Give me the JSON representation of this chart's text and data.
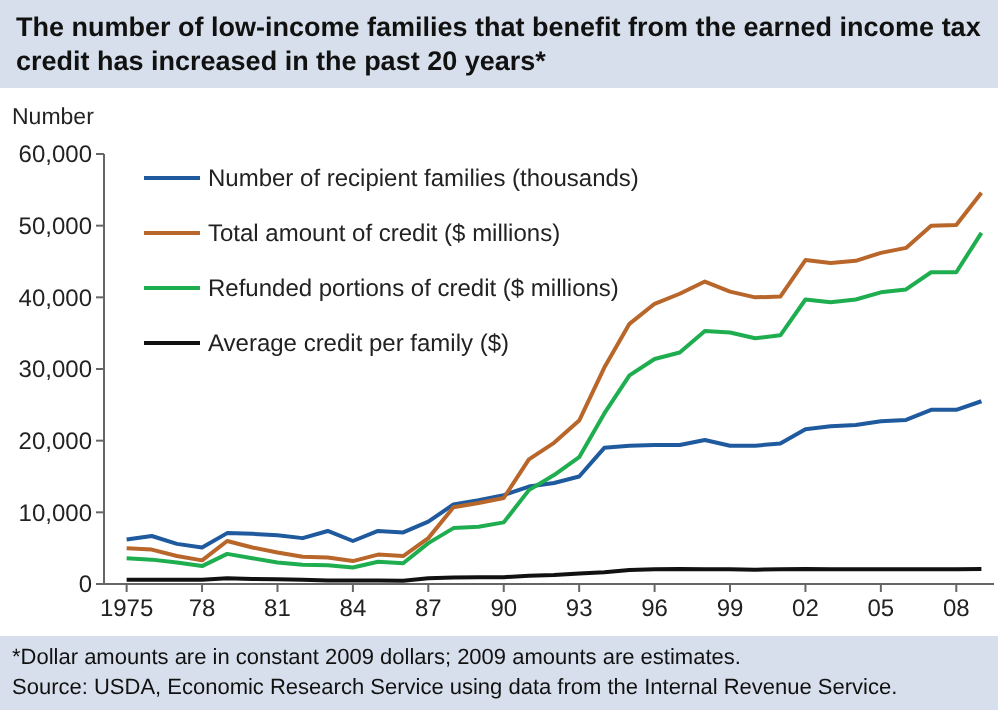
{
  "chart_data": {
    "type": "line",
    "title": "The number of low-income families that benefit from the earned income tax credit has increased in the past 20 years*",
    "ylabel": "Number",
    "annotations": [
      "*Dollar amounts are in constant 2009 dollars; 2009 amounts are estimates.",
      "Source:  USDA, Economic Research Service using data from the Internal Revenue Service."
    ],
    "x": [
      1975,
      1976,
      1977,
      1978,
      1979,
      1980,
      1981,
      1982,
      1983,
      1984,
      1985,
      1986,
      1987,
      1988,
      1989,
      1990,
      1991,
      1992,
      1993,
      1994,
      1995,
      1996,
      1997,
      1998,
      1999,
      2000,
      2001,
      2002,
      2003,
      2004,
      2005,
      2006,
      2007,
      2008,
      2009
    ],
    "series": [
      {
        "name": "Number of recipient families (thousands)",
        "color": "#1f5a9e",
        "values": [
          6200,
          6700,
          5600,
          5100,
          7100,
          7000,
          6800,
          6400,
          7400,
          6000,
          7400,
          7200,
          8700,
          11100,
          11700,
          12400,
          13600,
          14100,
          15000,
          19000,
          19300,
          19400,
          19400,
          20100,
          19300,
          19300,
          19600,
          21600,
          22000,
          22200,
          22700,
          22900,
          24300,
          24300,
          25500
        ]
      },
      {
        "name": "Total amount of credit ($ millions)",
        "color": "#b8662a",
        "values": [
          5000,
          4800,
          3900,
          3300,
          6000,
          5100,
          4400,
          3800,
          3700,
          3200,
          4100,
          3900,
          6400,
          10700,
          11300,
          12000,
          17400,
          19700,
          22800,
          30200,
          36300,
          39100,
          40500,
          42200,
          40800,
          40000,
          40100,
          45200,
          44800,
          45100,
          46200,
          46900,
          50000,
          50100,
          54600
        ]
      },
      {
        "name": "Refunded portions of credit ($ millions)",
        "color": "#1fae4f",
        "values": [
          3600,
          3400,
          3000,
          2500,
          4200,
          3600,
          3000,
          2700,
          2600,
          2300,
          3100,
          2900,
          5700,
          7800,
          8000,
          8600,
          13100,
          15200,
          17700,
          23800,
          29100,
          31400,
          32300,
          35300,
          35100,
          34300,
          34700,
          39700,
          39300,
          39700,
          40700,
          41100,
          43500,
          43500,
          49000
        ]
      },
      {
        "name": "Average credit per family ($)",
        "color": "#111111",
        "values": [
          600,
          600,
          600,
          600,
          800,
          700,
          650,
          600,
          500,
          500,
          500,
          450,
          800,
          900,
          950,
          950,
          1150,
          1250,
          1450,
          1650,
          1950,
          2050,
          2100,
          2050,
          2050,
          2000,
          2050,
          2100,
          2050,
          2050,
          2050,
          2050,
          2050,
          2050,
          2100
        ]
      }
    ],
    "xlim": [
      1974.1,
      2009.5
    ],
    "xticks": [
      {
        "value": 1975,
        "label": "1975"
      },
      {
        "value": 1978,
        "label": "78"
      },
      {
        "value": 1981,
        "label": "81"
      },
      {
        "value": 1984,
        "label": "84"
      },
      {
        "value": 1987,
        "label": "87"
      },
      {
        "value": 1990,
        "label": "90"
      },
      {
        "value": 1993,
        "label": "93"
      },
      {
        "value": 1996,
        "label": "96"
      },
      {
        "value": 1999,
        "label": "99"
      },
      {
        "value": 2002,
        "label": "02"
      },
      {
        "value": 2005,
        "label": "05"
      },
      {
        "value": 2008,
        "label": "08"
      }
    ],
    "ylim": [
      0,
      60000
    ],
    "yticks": [
      {
        "value": 0,
        "label": "0"
      },
      {
        "value": 10000,
        "label": "10,000"
      },
      {
        "value": 20000,
        "label": "20,000"
      },
      {
        "value": 30000,
        "label": "30,000"
      },
      {
        "value": 40000,
        "label": "40,000"
      },
      {
        "value": 50000,
        "label": "50,000"
      },
      {
        "value": 60000,
        "label": "60,000"
      }
    ],
    "legend": "top left",
    "grid": false,
    "marker": "none",
    "line_style": "solid"
  }
}
